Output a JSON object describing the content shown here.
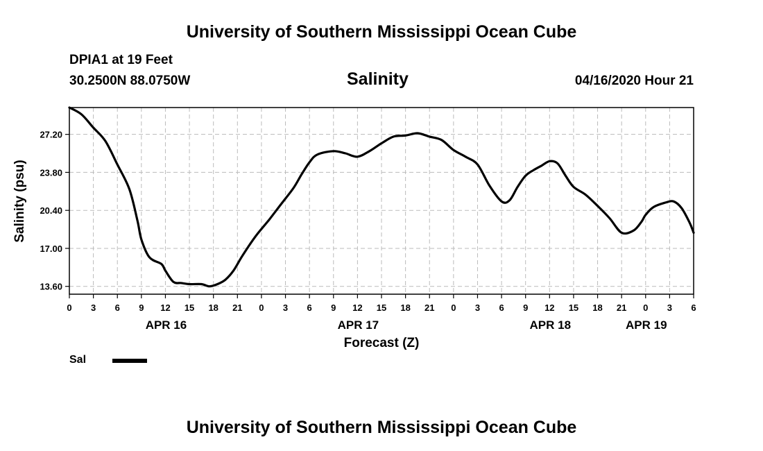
{
  "header": {
    "title_top": "University of Southern Mississippi Ocean Cube",
    "station": "DPIA1 at 19 Feet",
    "location": "30.2500N 88.0750W",
    "variable": "Salinity",
    "date": "04/16/2020 Hour 21"
  },
  "footer": {
    "title_bottom": "University of Southern Mississippi Ocean Cube"
  },
  "legend": {
    "label": "Sal"
  },
  "colors": {
    "line": "#000000",
    "grid": "#bbbbbb",
    "axis": "#000000"
  },
  "chart_data": {
    "type": "line",
    "title": "Salinity",
    "xlabel": "Forecast (Z)",
    "ylabel": "Salinity (psu)",
    "x_unit": "hours since Apr 16 00Z",
    "xlim": [
      0,
      78
    ],
    "ylim": [
      12.9,
      29.6
    ],
    "y_ticks": [
      13.6,
      17.0,
      20.4,
      23.8,
      27.2
    ],
    "y_tick_labels": [
      "13.60",
      "17.00",
      "20.40",
      "23.80",
      "27.20"
    ],
    "x_ticks": [
      0,
      3,
      6,
      9,
      12,
      15,
      18,
      21,
      24,
      27,
      30,
      33,
      36,
      39,
      42,
      45,
      48,
      51,
      54,
      57,
      60,
      63,
      66,
      69,
      72,
      75,
      78
    ],
    "x_tick_labels": [
      "0",
      "3",
      "6",
      "9",
      "12",
      "15",
      "18",
      "21",
      "0",
      "3",
      "6",
      "9",
      "12",
      "15",
      "18",
      "21",
      "0",
      "3",
      "6",
      "9",
      "12",
      "15",
      "18",
      "21",
      "0",
      "3",
      "6"
    ],
    "date_labels": [
      {
        "x": 12,
        "label": "APR 16"
      },
      {
        "x": 36,
        "label": "APR 17"
      },
      {
        "x": 60,
        "label": "APR 18"
      },
      {
        "x": 72,
        "label": "APR 19"
      }
    ],
    "grid": true,
    "series": [
      {
        "name": "Sal",
        "x": [
          0,
          1.5,
          3,
          4.5,
          6,
          7.5,
          8.5,
          9,
          10,
          11.5,
          12,
          13,
          14,
          15,
          16.5,
          17.5,
          18.5,
          19.5,
          20.5,
          21.5,
          22.5,
          23.5,
          25,
          26.5,
          28,
          29,
          30,
          31,
          33,
          34.5,
          36,
          37.5,
          39,
          40.5,
          42,
          43.5,
          45,
          46.5,
          48,
          49.5,
          51,
          52.5,
          54,
          55,
          56,
          57,
          58,
          59,
          60,
          61,
          62,
          63,
          64.5,
          66,
          67.5,
          69,
          70.5,
          71.5,
          72,
          73,
          74.5,
          75.5,
          76.5,
          77.5,
          78
        ],
        "y": [
          29.6,
          29.0,
          27.8,
          26.6,
          24.5,
          22.3,
          19.5,
          17.8,
          16.2,
          15.6,
          15.0,
          14.0,
          13.9,
          13.8,
          13.8,
          13.6,
          13.8,
          14.2,
          15.0,
          16.2,
          17.3,
          18.3,
          19.6,
          21.0,
          22.4,
          23.6,
          24.7,
          25.4,
          25.7,
          25.5,
          25.2,
          25.7,
          26.4,
          27.0,
          27.1,
          27.3,
          27.0,
          26.7,
          25.8,
          25.2,
          24.5,
          22.6,
          21.2,
          21.3,
          22.5,
          23.5,
          24.0,
          24.4,
          24.8,
          24.6,
          23.5,
          22.5,
          21.8,
          20.8,
          19.7,
          18.4,
          18.6,
          19.4,
          20.0,
          20.7,
          21.1,
          21.2,
          20.6,
          19.3,
          18.4
        ]
      }
    ]
  }
}
